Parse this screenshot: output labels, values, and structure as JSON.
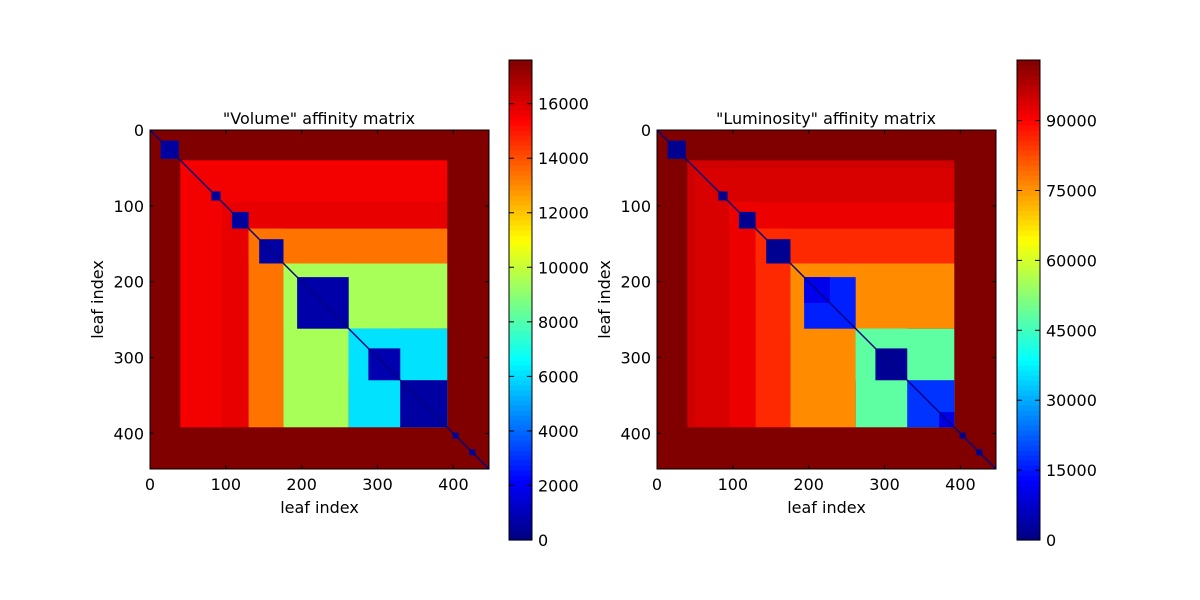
{
  "chart_data": [
    {
      "type": "heatmap",
      "title": "\"Volume\" affinity matrix",
      "xlabel": "leaf index",
      "ylabel": "leaf index",
      "xlim": [
        0,
        447
      ],
      "ylim": [
        447,
        0
      ],
      "x_ticks": [
        0,
        100,
        200,
        300,
        400
      ],
      "y_ticks": [
        0,
        100,
        200,
        300,
        400
      ],
      "colormap": "jet",
      "colorbar": {
        "min": 0,
        "max": 17600,
        "ticks": [
          0,
          2000,
          4000,
          6000,
          8000,
          10000,
          12000,
          14000,
          16000
        ]
      },
      "background_value": 17600,
      "diagonal_value": 0,
      "bands": [
        {
          "start": 40,
          "end": 50,
          "value": 15500
        },
        {
          "start": 50,
          "end": 95,
          "value": 15600
        },
        {
          "start": 95,
          "end": 130,
          "value": 15800
        },
        {
          "start": 130,
          "end": 176,
          "value": 13400
        },
        {
          "start": 176,
          "end": 262,
          "value": 9500
        },
        {
          "start": 262,
          "end": 330,
          "value": 6100
        }
      ],
      "envelope": {
        "start": 40,
        "end": 392
      },
      "blocks": [
        {
          "start": 14,
          "end": 38,
          "value": 600
        },
        {
          "start": 81,
          "end": 93,
          "value": 600
        },
        {
          "start": 108,
          "end": 130,
          "value": 600
        },
        {
          "start": 144,
          "end": 176,
          "value": 600
        },
        {
          "start": 194,
          "end": 262,
          "value": 700
        },
        {
          "start": 262,
          "end": 330,
          "value": 6100
        },
        {
          "start": 288,
          "end": 330,
          "value": 800
        },
        {
          "start": 330,
          "end": 392,
          "value": 600
        },
        {
          "start": 399,
          "end": 407,
          "value": 600
        },
        {
          "start": 421,
          "end": 429,
          "value": 600
        }
      ]
    },
    {
      "type": "heatmap",
      "title": "\"Luminosity\" affinity matrix",
      "xlabel": "leaf index",
      "ylabel": "leaf index",
      "xlim": [
        0,
        447
      ],
      "ylim": [
        447,
        0
      ],
      "x_ticks": [
        0,
        100,
        200,
        300,
        400
      ],
      "y_ticks": [
        0,
        100,
        200,
        300,
        400
      ],
      "colormap": "jet",
      "colorbar": {
        "min": 0,
        "max": 103000,
        "ticks": [
          0,
          15000,
          30000,
          45000,
          60000,
          75000,
          90000
        ]
      },
      "background_value": 103000,
      "diagonal_value": 0,
      "bands": [
        {
          "start": 40,
          "end": 50,
          "value": 95000
        },
        {
          "start": 50,
          "end": 95,
          "value": 94000
        },
        {
          "start": 95,
          "end": 130,
          "value": 92000
        },
        {
          "start": 130,
          "end": 176,
          "value": 86000
        },
        {
          "start": 176,
          "end": 262,
          "value": 76000
        },
        {
          "start": 262,
          "end": 330,
          "value": 48000
        }
      ],
      "envelope": {
        "start": 40,
        "end": 392
      },
      "blocks": [
        {
          "start": 14,
          "end": 38,
          "value": 2000
        },
        {
          "start": 81,
          "end": 93,
          "value": 2000
        },
        {
          "start": 108,
          "end": 130,
          "value": 2000
        },
        {
          "start": 144,
          "end": 176,
          "value": 2000
        },
        {
          "start": 194,
          "end": 262,
          "value": 16000
        },
        {
          "start": 194,
          "end": 228,
          "value": 11000
        },
        {
          "start": 262,
          "end": 330,
          "value": 48000
        },
        {
          "start": 288,
          "end": 330,
          "value": 2000
        },
        {
          "start": 330,
          "end": 392,
          "value": 18000
        },
        {
          "start": 372,
          "end": 392,
          "value": 10000
        },
        {
          "start": 399,
          "end": 407,
          "value": 2000
        },
        {
          "start": 421,
          "end": 429,
          "value": 2000
        }
      ]
    }
  ]
}
